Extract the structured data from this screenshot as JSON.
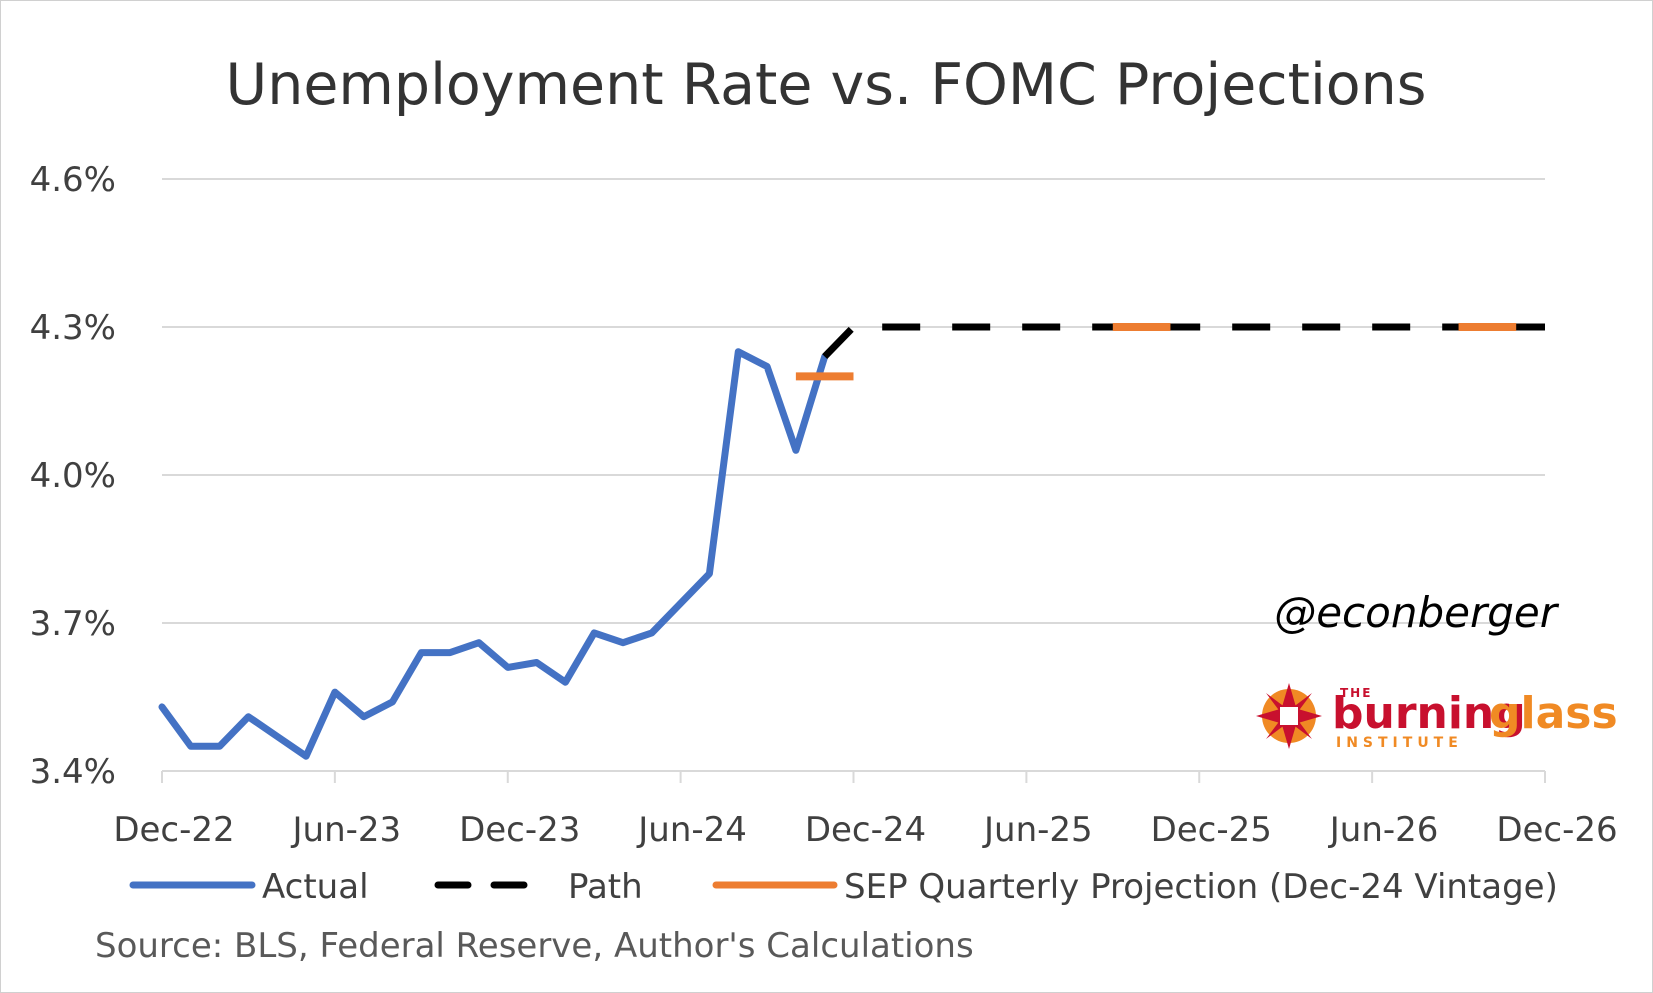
{
  "chart_data": {
    "type": "line",
    "title": "Unemployment Rate vs. FOMC Projections",
    "xlabel": "",
    "ylabel": "",
    "ylim": [
      3.4,
      4.6
    ],
    "y_ticks": [
      "3.4%",
      "3.7%",
      "4.0%",
      "4.3%",
      "4.6%"
    ],
    "y_tick_values": [
      3.4,
      3.7,
      4.0,
      4.3,
      4.6
    ],
    "x_range": [
      "2022-12",
      "2026-12"
    ],
    "x_ticks": [
      "Dec-22",
      "Jun-23",
      "Dec-23",
      "Jun-24",
      "Dec-24",
      "Jun-25",
      "Dec-25",
      "Jun-26",
      "Dec-26"
    ],
    "x_tick_months": [
      "2022-12",
      "2023-06",
      "2023-12",
      "2024-06",
      "2024-12",
      "2025-06",
      "2025-12",
      "2026-06",
      "2026-12"
    ],
    "grid": true,
    "legend_position": "bottom",
    "series": [
      {
        "name": "Actual",
        "style": "solid",
        "color": "#4472c4",
        "x": [
          "2022-12",
          "2023-01",
          "2023-02",
          "2023-03",
          "2023-04",
          "2023-05",
          "2023-06",
          "2023-07",
          "2023-08",
          "2023-09",
          "2023-10",
          "2023-11",
          "2023-12",
          "2024-01",
          "2024-02",
          "2024-03",
          "2024-04",
          "2024-05",
          "2024-06",
          "2024-07",
          "2024-08",
          "2024-09",
          "2024-10",
          "2024-11"
        ],
        "values": [
          3.53,
          3.45,
          3.45,
          3.51,
          3.47,
          3.43,
          3.56,
          3.51,
          3.54,
          3.64,
          3.64,
          3.66,
          3.61,
          3.62,
          3.58,
          3.68,
          3.66,
          3.68,
          3.74,
          3.8,
          4.25,
          4.22,
          4.05,
          4.24
        ]
      },
      {
        "name": "Path",
        "style": "dashed",
        "color": "#000000",
        "x": [
          "2024-11",
          "2024-12",
          "2025-01",
          "2026-12"
        ],
        "values": [
          4.24,
          4.3,
          4.3,
          4.3
        ]
      },
      {
        "name": "SEP Quarterly Projection (Dec-24 Vintage)",
        "style": "segments",
        "color": "#ed7d31",
        "segments": [
          {
            "x": [
              "2024-10",
              "2024-12"
            ],
            "value": 4.2
          },
          {
            "x": [
              "2025-09",
              "2025-11"
            ],
            "value": 4.3
          },
          {
            "x": [
              "2026-09",
              "2026-11"
            ],
            "value": 4.3
          }
        ]
      }
    ]
  },
  "legend": {
    "actual_label": "Actual",
    "path_label": "Path",
    "sep_label": "SEP Quarterly Projection (Dec-24 Vintage)"
  },
  "watermark": {
    "handle": "@econberger",
    "logo_the": "THE",
    "logo_burning": "burning",
    "logo_glass": "glass",
    "logo_institute": "INSTITUTE"
  },
  "source_note": "Source: BLS, Federal Reserve, Author's Calculations",
  "colors": {
    "actual": "#4472c4",
    "path": "#000000",
    "sep": "#ed7d31",
    "grid": "#d9d9d9",
    "logo_red": "#c8102e",
    "logo_orange": "#f08a24"
  }
}
